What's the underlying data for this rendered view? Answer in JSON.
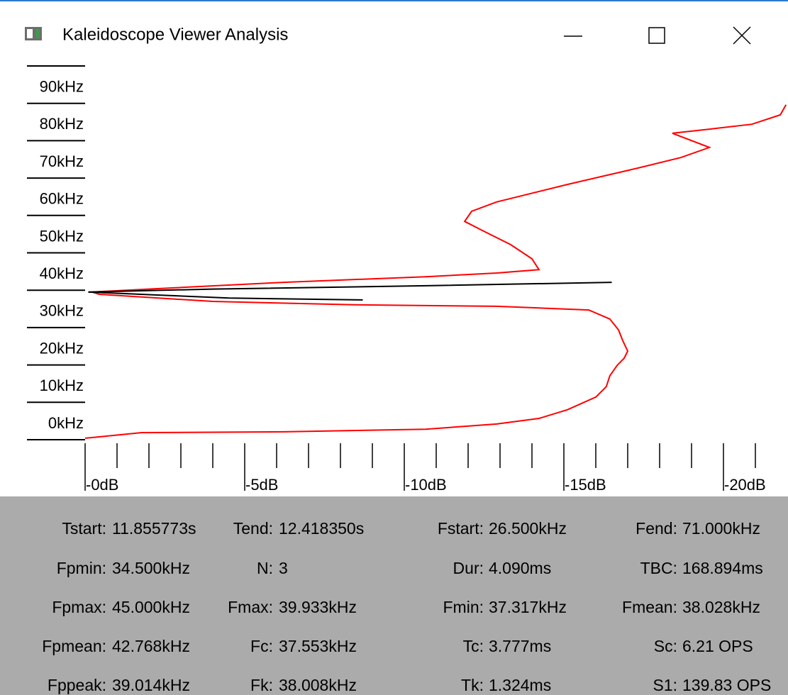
{
  "window": {
    "title": "Kaleidoscope Viewer Analysis"
  },
  "chart_data": {
    "type": "line",
    "xlim": [
      0,
      -22
    ],
    "ylim": [
      0,
      100
    ],
    "xticks": [
      {
        "value": 0,
        "label": "-0dB"
      },
      {
        "value": -5,
        "label": "-5dB"
      },
      {
        "value": -10,
        "label": "-10dB"
      },
      {
        "value": -15,
        "label": "-15dB"
      },
      {
        "value": -20,
        "label": "-20dB"
      }
    ],
    "xminorticks": [
      -1,
      -2,
      -3,
      -4,
      -6,
      -7,
      -8,
      -9,
      -11,
      -12,
      -13,
      -14,
      -16,
      -17,
      -18,
      -19,
      -21
    ],
    "yticks": [
      {
        "value": 0,
        "label": "0kHz"
      },
      {
        "value": 10,
        "label": "10kHz"
      },
      {
        "value": 20,
        "label": "20kHz"
      },
      {
        "value": 30,
        "label": "30kHz"
      },
      {
        "value": 40,
        "label": "40kHz"
      },
      {
        "value": 50,
        "label": "50kHz"
      },
      {
        "value": 60,
        "label": "60kHz"
      },
      {
        "value": 70,
        "label": "70kHz"
      },
      {
        "value": 80,
        "label": "80kHz"
      },
      {
        "value": 90,
        "label": "90kHz"
      }
    ],
    "series": [
      {
        "color": "#ff0000",
        "x": [
          0,
          -1.78,
          -6.22,
          -10.67,
          -12.89,
          -14.22,
          -15.11,
          -16.0,
          -16.33,
          -16.44,
          -16.67,
          -16.89,
          -17.0,
          -16.84,
          -16.71,
          -16.44,
          -15.78,
          -12.89,
          -8.44,
          -4.0,
          -0.44,
          -0.22,
          -1.78,
          -6.22,
          -10.67,
          -12.89,
          -14.22,
          -14.0,
          -13.33,
          -12.44,
          -11.89,
          -12.11,
          -12.89,
          -15.11,
          -17.33,
          -18.67,
          -19.56,
          -18.4,
          -19.56,
          -20.89,
          -21.78,
          -21.96
        ],
        "values": [
          0.4,
          1.9,
          2.1,
          2.8,
          4.2,
          5.7,
          8.0,
          11.4,
          14.2,
          17.1,
          19.9,
          21.8,
          23.7,
          26.6,
          29.4,
          32.3,
          34.7,
          35.7,
          36.1,
          37.0,
          38.9,
          39.5,
          40.2,
          42.1,
          43.6,
          44.6,
          45.5,
          48.4,
          52.2,
          56.0,
          58.4,
          61.1,
          63.6,
          68.3,
          72.7,
          75.5,
          78.2,
          82.0,
          83.1,
          84.4,
          86.9,
          89.6
        ]
      },
      {
        "color": "#000000",
        "x": [
          -0.1,
          -4.0,
          -10.7,
          -16.5
        ],
        "values": [
          39.5,
          40.3,
          41.2,
          42.1
        ]
      },
      {
        "color": "#000000",
        "x": [
          -0.1,
          -2.0,
          -4.5,
          -8.7
        ],
        "values": [
          39.5,
          38.8,
          37.9,
          37.4
        ]
      }
    ]
  },
  "stats": [
    [
      [
        "Tstart:",
        "11.855773s"
      ],
      [
        "Tend:",
        "12.418350s"
      ],
      [
        "Fstart:",
        "26.500kHz"
      ],
      [
        "Fend:",
        "71.000kHz"
      ]
    ],
    [
      [
        "Fpmin:",
        "34.500kHz"
      ],
      [
        "N:",
        "3"
      ],
      [
        "Dur:",
        "4.090ms"
      ],
      [
        "TBC:",
        "168.894ms"
      ]
    ],
    [
      [
        "Fpmax:",
        "45.000kHz"
      ],
      [
        "Fmax:",
        "39.933kHz"
      ],
      [
        "Fmin:",
        "37.317kHz"
      ],
      [
        "Fmean:",
        "38.028kHz"
      ]
    ],
    [
      [
        "Fpmean:",
        "42.768kHz"
      ],
      [
        "Fc:",
        "37.553kHz"
      ],
      [
        "Tc:",
        "3.777ms"
      ],
      [
        "Sc:",
        "6.21 OPS"
      ]
    ],
    [
      [
        "Fppeak:",
        "39.014kHz"
      ],
      [
        "Fk:",
        "38.008kHz"
      ],
      [
        "Tk:",
        "1.324ms"
      ],
      [
        "S1:",
        "139.83 OPS"
      ]
    ]
  ]
}
